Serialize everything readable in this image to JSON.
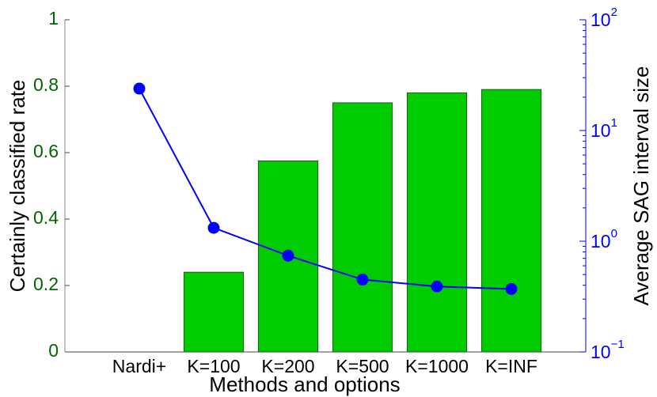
{
  "chart_data": {
    "type": "bar",
    "xlabel": "Methods and options",
    "ylabel": "Certainly classified rate",
    "y2label": "Average SAG interval size",
    "categories": [
      "Nardi+",
      "K=100",
      "K=200",
      "K=500",
      "K=1000",
      "K=INF"
    ],
    "series": [
      {
        "type": "bar",
        "color": "#00cc00",
        "values": [
          0,
          0.24,
          0.575,
          0.75,
          0.78,
          0.79
        ]
      },
      {
        "type": "line",
        "color": "#0000ff",
        "axis": "y2",
        "values": [
          23.9,
          1.32,
          0.74,
          0.45,
          0.39,
          0.37
        ]
      }
    ],
    "ylim": [
      0,
      1
    ],
    "yticks": [
      0,
      0.2,
      0.4,
      0.6,
      0.8,
      1
    ],
    "y2lim": [
      0.1,
      100
    ],
    "y2scale": "log",
    "y2ticks": [
      {
        "value": 0.1,
        "label": "10",
        "exponent": "−1"
      },
      {
        "value": 1,
        "label": "10",
        "exponent": "0"
      },
      {
        "value": 10,
        "label": "10",
        "exponent": "1"
      },
      {
        "value": 100,
        "label": "10",
        "exponent": "2"
      }
    ],
    "ycolor": "#006600",
    "y2color": "#0000ff"
  }
}
